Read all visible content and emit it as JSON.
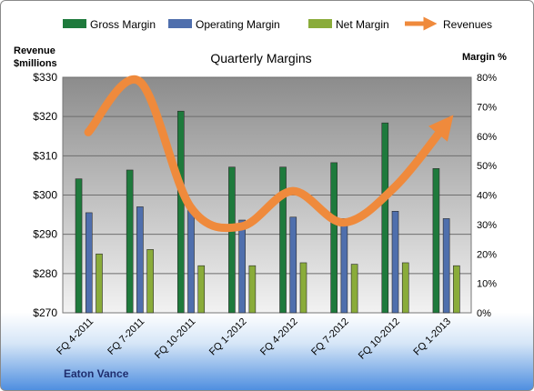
{
  "chart_data": {
    "type": "bar",
    "title": "Quarterly Margins",
    "categories": [
      "FQ 4-2011",
      "FQ 7-2011",
      "FQ 10-2011",
      "FQ 1-2012",
      "FQ 4-2012",
      "FQ 7-2012",
      "FQ 10-2012",
      "FQ 1-2013"
    ],
    "series": [
      {
        "name": "Gross Margin",
        "axis": "right",
        "color": "#1e7a3c",
        "values": [
          45.5,
          48.5,
          68.5,
          49.5,
          49.5,
          51,
          64.5,
          49
        ]
      },
      {
        "name": "Operating Margin",
        "axis": "right",
        "color": "#4f6fad",
        "values": [
          34,
          36,
          35,
          31.5,
          32.5,
          32,
          34.5,
          32
        ]
      },
      {
        "name": "Net Margin",
        "axis": "right",
        "color": "#8aac3a",
        "values": [
          20,
          21.5,
          16,
          16,
          17,
          16.5,
          17,
          16
        ]
      }
    ],
    "line_series": {
      "name": "Revenues",
      "axis": "left",
      "color": "#ef8a3c",
      "values": [
        316,
        329,
        297,
        292,
        301,
        293,
        302,
        318
      ]
    },
    "left_axis": {
      "label_line1": "Revenue",
      "label_line2": "$millions",
      "min": 270,
      "max": 330,
      "ticks": [
        "$270",
        "$280",
        "$290",
        "$300",
        "$310",
        "$320",
        "$330"
      ]
    },
    "right_axis": {
      "label": "Margin %",
      "min": 0,
      "max": 80,
      "ticks": [
        "0%",
        "10%",
        "20%",
        "30%",
        "40%",
        "50%",
        "60%",
        "70%",
        "80%"
      ]
    },
    "legend_position": "top",
    "grid": true,
    "source": "Eaton Vance"
  }
}
